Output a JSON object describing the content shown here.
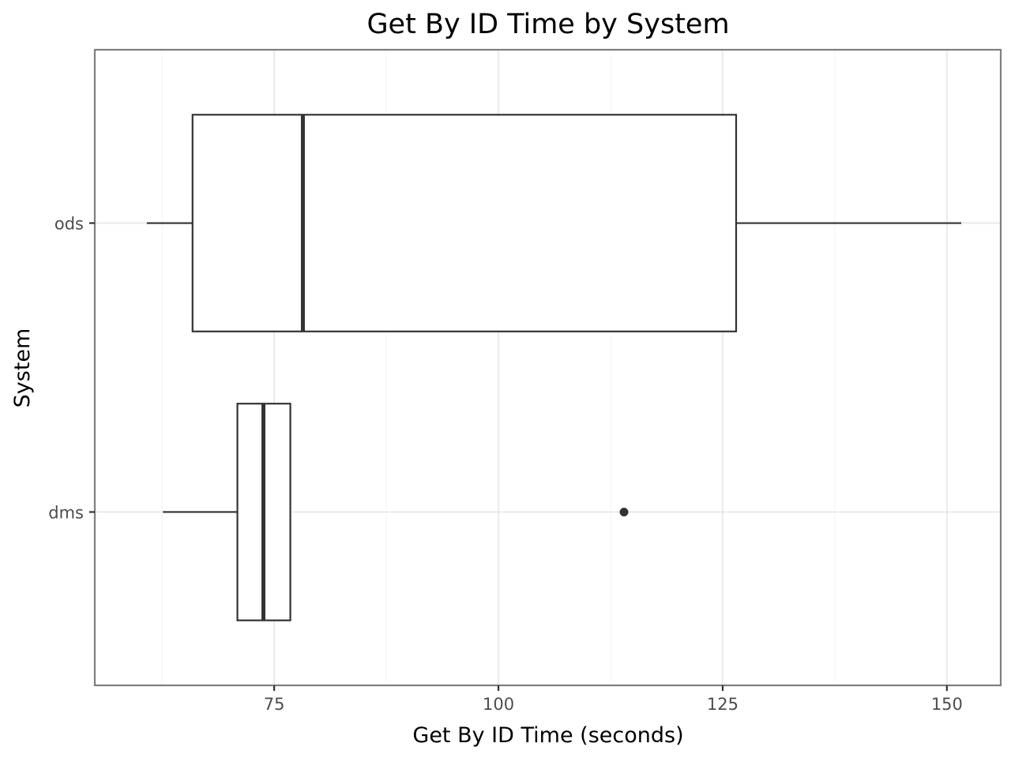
{
  "chart_data": {
    "type": "boxplot",
    "orientation": "horizontal",
    "title": "Get By ID Time by System",
    "xlabel": "Get By ID Time (seconds)",
    "ylabel": "System",
    "xlim": [
      55,
      156
    ],
    "xticks": [
      75,
      100,
      125,
      150
    ],
    "grid": true,
    "series": [
      {
        "name": "ods",
        "min": 60.8,
        "q1": 65.9,
        "median": 78.2,
        "q3": 126.5,
        "max": 151.6,
        "outliers": []
      },
      {
        "name": "dms",
        "min": 62.6,
        "q1": 70.9,
        "median": 73.8,
        "q3": 76.8,
        "max": 76.8,
        "outliers": [
          114.0
        ]
      }
    ]
  }
}
